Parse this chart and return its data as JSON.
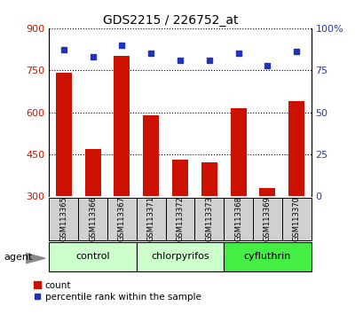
{
  "title": "GDS2215 / 226752_at",
  "samples": [
    "GSM113365",
    "GSM113366",
    "GSM113367",
    "GSM113371",
    "GSM113372",
    "GSM113373",
    "GSM113368",
    "GSM113369",
    "GSM113370"
  ],
  "count_values": [
    740,
    470,
    800,
    590,
    430,
    420,
    615,
    330,
    640
  ],
  "percentile_values": [
    87,
    83,
    90,
    85,
    81,
    81,
    85,
    78,
    86
  ],
  "bar_color": "#cc1100",
  "dot_color": "#2233bb",
  "left_ylim": [
    300,
    900
  ],
  "right_ylim": [
    0,
    100
  ],
  "left_yticks": [
    300,
    450,
    600,
    750,
    900
  ],
  "right_yticks": [
    0,
    25,
    50,
    75,
    100
  ],
  "right_yticklabels": [
    "0",
    "25",
    "50",
    "75",
    "100%"
  ],
  "groups": [
    {
      "label": "control",
      "indices": [
        0,
        1,
        2
      ],
      "color": "#ccffcc"
    },
    {
      "label": "chlorpyrifos",
      "indices": [
        3,
        4,
        5
      ],
      "color": "#ccffcc"
    },
    {
      "label": "cyfluthrin",
      "indices": [
        6,
        7,
        8
      ],
      "color": "#44ee44"
    }
  ],
  "agent_label": "agent",
  "legend_count_label": "count",
  "legend_percentile_label": "percentile rank within the sample",
  "background_color": "#ffffff",
  "xlabel_area_color": "#d0d0d0",
  "bar_bottom": 300
}
